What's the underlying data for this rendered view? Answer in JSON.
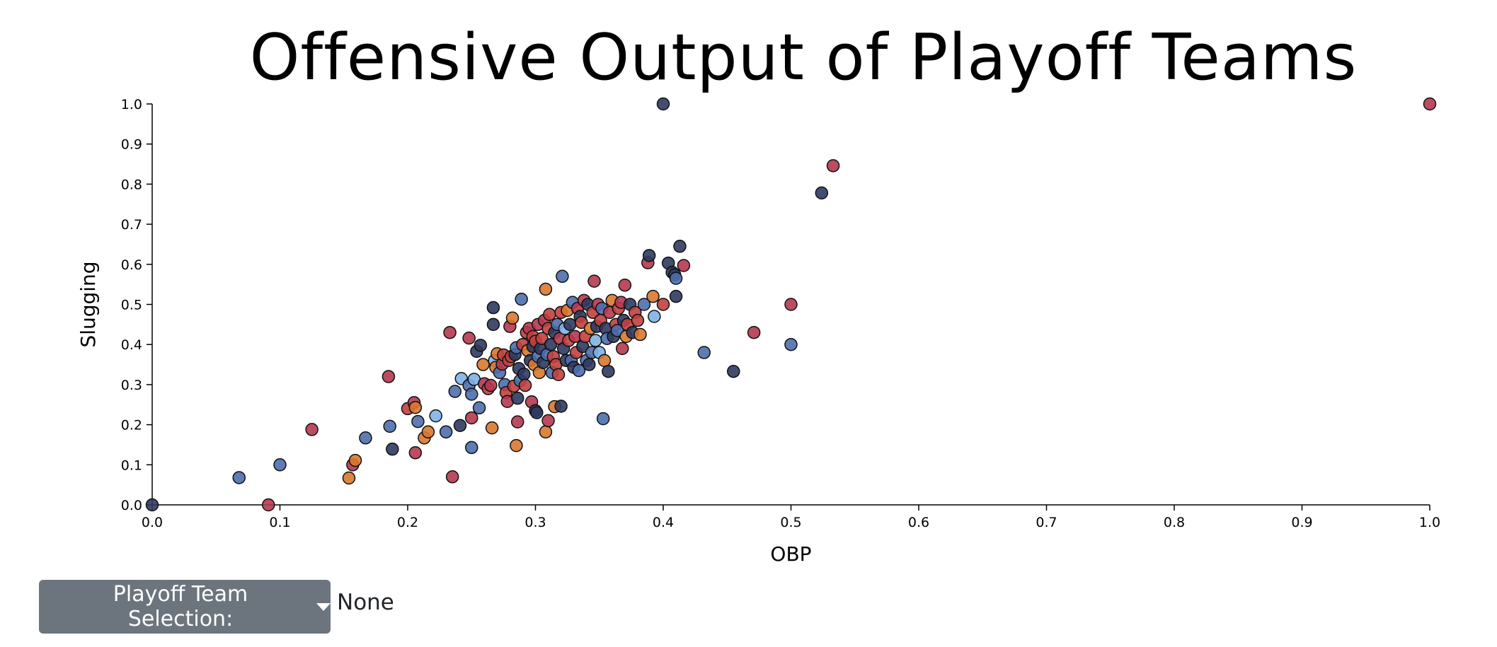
{
  "controls": {
    "dropdown_label": "Playoff Team Selection:",
    "selection_value": "None"
  },
  "chart_data": {
    "type": "scatter",
    "title": "Offensive Output of Playoff Teams",
    "xlabel": "OBP",
    "ylabel": "Slugging",
    "xlim": [
      0,
      1
    ],
    "ylim": [
      0,
      1
    ],
    "x_ticks": [
      "0.0",
      "0.1",
      "0.2",
      "0.3",
      "0.4",
      "0.5",
      "0.6",
      "0.7",
      "0.8",
      "0.9",
      "1.0"
    ],
    "y_ticks": [
      "0.0",
      "0.1",
      "0.2",
      "0.3",
      "0.4",
      "0.5",
      "0.6",
      "0.7",
      "0.8",
      "0.9",
      "1.0"
    ],
    "grid": false,
    "legend": "none",
    "colors": {
      "navy": "#2e3a5f",
      "blue": "#4e6ead",
      "lightblue": "#7fb2e5",
      "red": "#c0413f",
      "crimson": "#b5394f",
      "orange": "#d9782f"
    },
    "points": [
      {
        "x": 0.0,
        "y": 0.0,
        "c": "navy"
      },
      {
        "x": 0.4,
        "y": 1.0,
        "c": "navy"
      },
      {
        "x": 1.0,
        "y": 1.0,
        "c": "crimson"
      },
      {
        "x": 0.533,
        "y": 0.846,
        "c": "crimson"
      },
      {
        "x": 0.524,
        "y": 0.778,
        "c": "navy"
      },
      {
        "x": 0.068,
        "y": 0.068,
        "c": "blue"
      },
      {
        "x": 0.091,
        "y": 0.0,
        "c": "crimson"
      },
      {
        "x": 0.1,
        "y": 0.1,
        "c": "blue"
      },
      {
        "x": 0.125,
        "y": 0.188,
        "c": "crimson"
      },
      {
        "x": 0.154,
        "y": 0.067,
        "c": "orange"
      },
      {
        "x": 0.157,
        "y": 0.1,
        "c": "crimson"
      },
      {
        "x": 0.159,
        "y": 0.111,
        "c": "orange"
      },
      {
        "x": 0.167,
        "y": 0.167,
        "c": "blue"
      },
      {
        "x": 0.185,
        "y": 0.32,
        "c": "crimson"
      },
      {
        "x": 0.186,
        "y": 0.196,
        "c": "blue"
      },
      {
        "x": 0.188,
        "y": 0.139,
        "c": "navy"
      },
      {
        "x": 0.2,
        "y": 0.24,
        "c": "red"
      },
      {
        "x": 0.205,
        "y": 0.255,
        "c": "crimson"
      },
      {
        "x": 0.206,
        "y": 0.243,
        "c": "orange"
      },
      {
        "x": 0.206,
        "y": 0.13,
        "c": "crimson"
      },
      {
        "x": 0.208,
        "y": 0.208,
        "c": "blue"
      },
      {
        "x": 0.213,
        "y": 0.167,
        "c": "orange"
      },
      {
        "x": 0.216,
        "y": 0.182,
        "c": "orange"
      },
      {
        "x": 0.222,
        "y": 0.222,
        "c": "lightblue"
      },
      {
        "x": 0.23,
        "y": 0.182,
        "c": "blue"
      },
      {
        "x": 0.233,
        "y": 0.43,
        "c": "crimson"
      },
      {
        "x": 0.235,
        "y": 0.07,
        "c": "crimson"
      },
      {
        "x": 0.237,
        "y": 0.283,
        "c": "blue"
      },
      {
        "x": 0.241,
        "y": 0.198,
        "c": "navy"
      },
      {
        "x": 0.242,
        "y": 0.315,
        "c": "lightblue"
      },
      {
        "x": 0.248,
        "y": 0.416,
        "c": "crimson"
      },
      {
        "x": 0.248,
        "y": 0.298,
        "c": "blue"
      },
      {
        "x": 0.25,
        "y": 0.143,
        "c": "blue"
      },
      {
        "x": 0.25,
        "y": 0.217,
        "c": "crimson"
      },
      {
        "x": 0.25,
        "y": 0.276,
        "c": "blue"
      },
      {
        "x": 0.252,
        "y": 0.313,
        "c": "lightblue"
      },
      {
        "x": 0.254,
        "y": 0.383,
        "c": "navy"
      },
      {
        "x": 0.256,
        "y": 0.242,
        "c": "blue"
      },
      {
        "x": 0.257,
        "y": 0.398,
        "c": "navy"
      },
      {
        "x": 0.259,
        "y": 0.35,
        "c": "orange"
      },
      {
        "x": 0.26,
        "y": 0.302,
        "c": "crimson"
      },
      {
        "x": 0.263,
        "y": 0.29,
        "c": "red"
      },
      {
        "x": 0.265,
        "y": 0.298,
        "c": "crimson"
      },
      {
        "x": 0.266,
        "y": 0.192,
        "c": "orange"
      },
      {
        "x": 0.267,
        "y": 0.492,
        "c": "navy"
      },
      {
        "x": 0.267,
        "y": 0.45,
        "c": "navy"
      },
      {
        "x": 0.268,
        "y": 0.36,
        "c": "lightblue"
      },
      {
        "x": 0.269,
        "y": 0.343,
        "c": "orange"
      },
      {
        "x": 0.27,
        "y": 0.377,
        "c": "orange"
      },
      {
        "x": 0.272,
        "y": 0.33,
        "c": "blue"
      },
      {
        "x": 0.274,
        "y": 0.351,
        "c": "crimson"
      },
      {
        "x": 0.275,
        "y": 0.374,
        "c": "red"
      },
      {
        "x": 0.276,
        "y": 0.3,
        "c": "blue"
      },
      {
        "x": 0.277,
        "y": 0.28,
        "c": "red"
      },
      {
        "x": 0.278,
        "y": 0.258,
        "c": "crimson"
      },
      {
        "x": 0.279,
        "y": 0.36,
        "c": "red"
      },
      {
        "x": 0.28,
        "y": 0.445,
        "c": "crimson"
      },
      {
        "x": 0.281,
        "y": 0.37,
        "c": "red"
      },
      {
        "x": 0.282,
        "y": 0.466,
        "c": "orange"
      },
      {
        "x": 0.283,
        "y": 0.296,
        "c": "red"
      },
      {
        "x": 0.284,
        "y": 0.375,
        "c": "navy"
      },
      {
        "x": 0.285,
        "y": 0.392,
        "c": "blue"
      },
      {
        "x": 0.285,
        "y": 0.148,
        "c": "orange"
      },
      {
        "x": 0.286,
        "y": 0.266,
        "c": "navy"
      },
      {
        "x": 0.286,
        "y": 0.207,
        "c": "crimson"
      },
      {
        "x": 0.287,
        "y": 0.34,
        "c": "navy"
      },
      {
        "x": 0.288,
        "y": 0.31,
        "c": "blue"
      },
      {
        "x": 0.289,
        "y": 0.513,
        "c": "blue"
      },
      {
        "x": 0.29,
        "y": 0.4,
        "c": "red"
      },
      {
        "x": 0.291,
        "y": 0.326,
        "c": "navy"
      },
      {
        "x": 0.292,
        "y": 0.298,
        "c": "red"
      },
      {
        "x": 0.293,
        "y": 0.43,
        "c": "red"
      },
      {
        "x": 0.294,
        "y": 0.385,
        "c": "orange"
      },
      {
        "x": 0.295,
        "y": 0.44,
        "c": "crimson"
      },
      {
        "x": 0.296,
        "y": 0.36,
        "c": "navy"
      },
      {
        "x": 0.297,
        "y": 0.257,
        "c": "crimson"
      },
      {
        "x": 0.298,
        "y": 0.395,
        "c": "navy"
      },
      {
        "x": 0.298,
        "y": 0.42,
        "c": "red"
      },
      {
        "x": 0.299,
        "y": 0.35,
        "c": "orange"
      },
      {
        "x": 0.3,
        "y": 0.235,
        "c": "navy"
      },
      {
        "x": 0.3,
        "y": 0.408,
        "c": "red"
      },
      {
        "x": 0.301,
        "y": 0.23,
        "c": "navy"
      },
      {
        "x": 0.302,
        "y": 0.45,
        "c": "crimson"
      },
      {
        "x": 0.302,
        "y": 0.37,
        "c": "blue"
      },
      {
        "x": 0.303,
        "y": 0.33,
        "c": "orange"
      },
      {
        "x": 0.304,
        "y": 0.39,
        "c": "navy"
      },
      {
        "x": 0.305,
        "y": 0.415,
        "c": "red"
      },
      {
        "x": 0.306,
        "y": 0.355,
        "c": "navy"
      },
      {
        "x": 0.307,
        "y": 0.46,
        "c": "crimson"
      },
      {
        "x": 0.308,
        "y": 0.182,
        "c": "orange"
      },
      {
        "x": 0.308,
        "y": 0.538,
        "c": "orange"
      },
      {
        "x": 0.309,
        "y": 0.375,
        "c": "blue"
      },
      {
        "x": 0.31,
        "y": 0.21,
        "c": "crimson"
      },
      {
        "x": 0.31,
        "y": 0.44,
        "c": "red"
      },
      {
        "x": 0.311,
        "y": 0.475,
        "c": "red"
      },
      {
        "x": 0.312,
        "y": 0.4,
        "c": "navy"
      },
      {
        "x": 0.313,
        "y": 0.33,
        "c": "blue"
      },
      {
        "x": 0.314,
        "y": 0.37,
        "c": "red"
      },
      {
        "x": 0.315,
        "y": 0.245,
        "c": "orange"
      },
      {
        "x": 0.315,
        "y": 0.43,
        "c": "navy"
      },
      {
        "x": 0.316,
        "y": 0.35,
        "c": "red"
      },
      {
        "x": 0.317,
        "y": 0.45,
        "c": "blue"
      },
      {
        "x": 0.318,
        "y": 0.325,
        "c": "red"
      },
      {
        "x": 0.319,
        "y": 0.415,
        "c": "crimson"
      },
      {
        "x": 0.32,
        "y": 0.246,
        "c": "navy"
      },
      {
        "x": 0.32,
        "y": 0.48,
        "c": "red"
      },
      {
        "x": 0.321,
        "y": 0.57,
        "c": "blue"
      },
      {
        "x": 0.322,
        "y": 0.39,
        "c": "navy"
      },
      {
        "x": 0.323,
        "y": 0.44,
        "c": "lightblue"
      },
      {
        "x": 0.324,
        "y": 0.36,
        "c": "navy"
      },
      {
        "x": 0.325,
        "y": 0.485,
        "c": "orange"
      },
      {
        "x": 0.326,
        "y": 0.41,
        "c": "red"
      },
      {
        "x": 0.327,
        "y": 0.45,
        "c": "navy"
      },
      {
        "x": 0.328,
        "y": 0.36,
        "c": "blue"
      },
      {
        "x": 0.329,
        "y": 0.505,
        "c": "blue"
      },
      {
        "x": 0.33,
        "y": 0.343,
        "c": "navy"
      },
      {
        "x": 0.331,
        "y": 0.42,
        "c": "crimson"
      },
      {
        "x": 0.332,
        "y": 0.38,
        "c": "red"
      },
      {
        "x": 0.333,
        "y": 0.49,
        "c": "crimson"
      },
      {
        "x": 0.334,
        "y": 0.335,
        "c": "blue"
      },
      {
        "x": 0.335,
        "y": 0.47,
        "c": "navy"
      },
      {
        "x": 0.336,
        "y": 0.455,
        "c": "red"
      },
      {
        "x": 0.337,
        "y": 0.395,
        "c": "navy"
      },
      {
        "x": 0.338,
        "y": 0.51,
        "c": "crimson"
      },
      {
        "x": 0.339,
        "y": 0.42,
        "c": "red"
      },
      {
        "x": 0.34,
        "y": 0.36,
        "c": "blue"
      },
      {
        "x": 0.341,
        "y": 0.5,
        "c": "navy"
      },
      {
        "x": 0.342,
        "y": 0.35,
        "c": "navy"
      },
      {
        "x": 0.343,
        "y": 0.44,
        "c": "orange"
      },
      {
        "x": 0.344,
        "y": 0.38,
        "c": "blue"
      },
      {
        "x": 0.345,
        "y": 0.48,
        "c": "red"
      },
      {
        "x": 0.346,
        "y": 0.558,
        "c": "crimson"
      },
      {
        "x": 0.347,
        "y": 0.41,
        "c": "lightblue"
      },
      {
        "x": 0.348,
        "y": 0.445,
        "c": "navy"
      },
      {
        "x": 0.349,
        "y": 0.5,
        "c": "crimson"
      },
      {
        "x": 0.35,
        "y": 0.38,
        "c": "lightblue"
      },
      {
        "x": 0.351,
        "y": 0.46,
        "c": "red"
      },
      {
        "x": 0.352,
        "y": 0.49,
        "c": "blue"
      },
      {
        "x": 0.353,
        "y": 0.215,
        "c": "blue"
      },
      {
        "x": 0.354,
        "y": 0.36,
        "c": "orange"
      },
      {
        "x": 0.355,
        "y": 0.44,
        "c": "navy"
      },
      {
        "x": 0.356,
        "y": 0.415,
        "c": "blue"
      },
      {
        "x": 0.357,
        "y": 0.333,
        "c": "navy"
      },
      {
        "x": 0.358,
        "y": 0.48,
        "c": "crimson"
      },
      {
        "x": 0.36,
        "y": 0.51,
        "c": "orange"
      },
      {
        "x": 0.361,
        "y": 0.42,
        "c": "navy"
      },
      {
        "x": 0.363,
        "y": 0.45,
        "c": "red"
      },
      {
        "x": 0.364,
        "y": 0.435,
        "c": "blue"
      },
      {
        "x": 0.365,
        "y": 0.49,
        "c": "red"
      },
      {
        "x": 0.367,
        "y": 0.505,
        "c": "crimson"
      },
      {
        "x": 0.368,
        "y": 0.39,
        "c": "crimson"
      },
      {
        "x": 0.369,
        "y": 0.46,
        "c": "navy"
      },
      {
        "x": 0.37,
        "y": 0.548,
        "c": "crimson"
      },
      {
        "x": 0.371,
        "y": 0.42,
        "c": "orange"
      },
      {
        "x": 0.372,
        "y": 0.45,
        "c": "red"
      },
      {
        "x": 0.374,
        "y": 0.5,
        "c": "navy"
      },
      {
        "x": 0.376,
        "y": 0.43,
        "c": "navy"
      },
      {
        "x": 0.378,
        "y": 0.48,
        "c": "red"
      },
      {
        "x": 0.38,
        "y": 0.46,
        "c": "red"
      },
      {
        "x": 0.382,
        "y": 0.425,
        "c": "orange"
      },
      {
        "x": 0.385,
        "y": 0.5,
        "c": "blue"
      },
      {
        "x": 0.388,
        "y": 0.604,
        "c": "crimson"
      },
      {
        "x": 0.389,
        "y": 0.622,
        "c": "navy"
      },
      {
        "x": 0.392,
        "y": 0.52,
        "c": "orange"
      },
      {
        "x": 0.393,
        "y": 0.47,
        "c": "lightblue"
      },
      {
        "x": 0.4,
        "y": 0.5,
        "c": "red"
      },
      {
        "x": 0.404,
        "y": 0.603,
        "c": "navy"
      },
      {
        "x": 0.407,
        "y": 0.58,
        "c": "navy"
      },
      {
        "x": 0.409,
        "y": 0.574,
        "c": "navy"
      },
      {
        "x": 0.41,
        "y": 0.52,
        "c": "navy"
      },
      {
        "x": 0.41,
        "y": 0.565,
        "c": "blue"
      },
      {
        "x": 0.413,
        "y": 0.645,
        "c": "navy"
      },
      {
        "x": 0.416,
        "y": 0.597,
        "c": "crimson"
      },
      {
        "x": 0.432,
        "y": 0.38,
        "c": "blue"
      },
      {
        "x": 0.455,
        "y": 0.333,
        "c": "navy"
      },
      {
        "x": 0.471,
        "y": 0.43,
        "c": "crimson"
      },
      {
        "x": 0.5,
        "y": 0.5,
        "c": "crimson"
      },
      {
        "x": 0.5,
        "y": 0.4,
        "c": "blue"
      }
    ]
  }
}
